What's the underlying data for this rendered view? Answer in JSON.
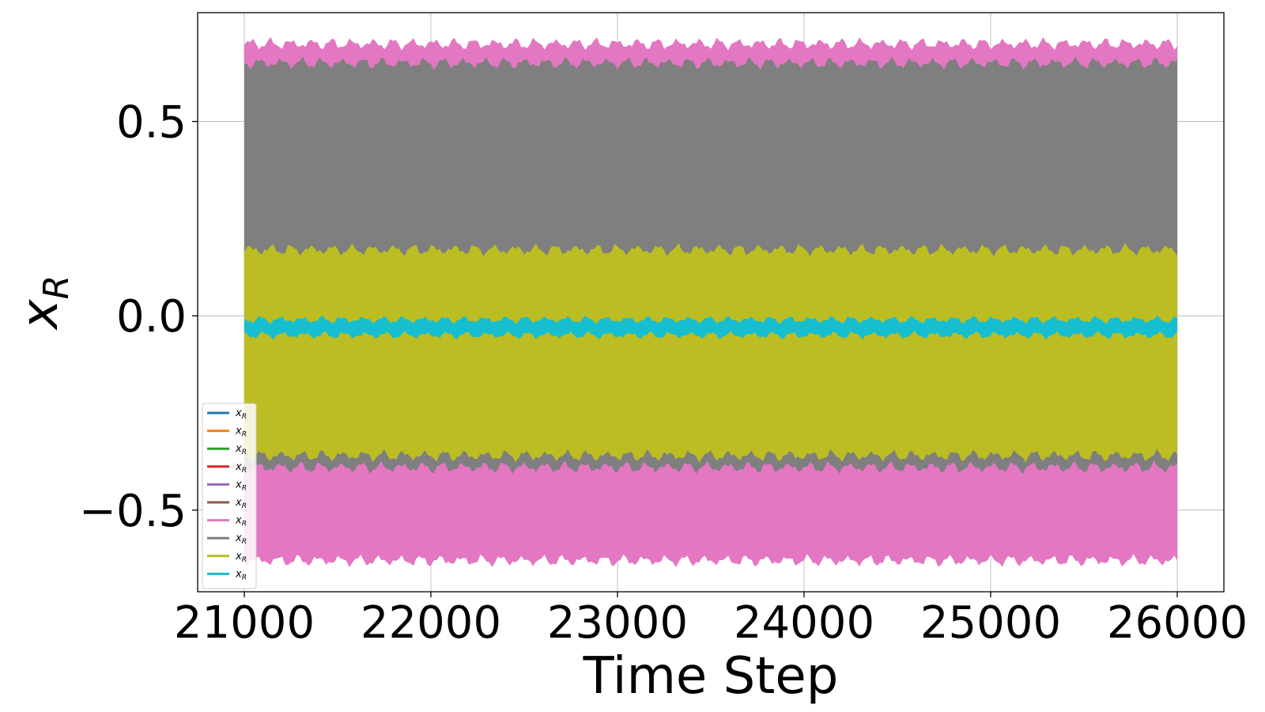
{
  "chart_data": {
    "type": "line",
    "xlabel": "Time Step",
    "ylabel": "x_R",
    "xlim": [
      20750,
      26250
    ],
    "ylim": [
      -0.71,
      0.78
    ],
    "x_ticks": [
      21000,
      22000,
      23000,
      24000,
      25000,
      26000
    ],
    "x_tick_labels": [
      "21000",
      "22000",
      "23000",
      "24000",
      "25000",
      "26000"
    ],
    "y_ticks": [
      -0.5,
      0.0,
      0.5
    ],
    "y_tick_labels": [
      "−0.5",
      "0.0",
      "0.5"
    ],
    "x_range": [
      21000,
      26000
    ],
    "grid": true,
    "legend_position": "lower-left",
    "series": [
      {
        "name": "x_R",
        "color": "#1f77b4",
        "band": [
          0.0,
          0.0
        ]
      },
      {
        "name": "x_R",
        "color": "#ff7f0e",
        "band": [
          0.0,
          0.0
        ]
      },
      {
        "name": "x_R",
        "color": "#2ca02c",
        "band": [
          0.0,
          0.0
        ]
      },
      {
        "name": "x_R",
        "color": "#d62728",
        "band": [
          0.0,
          0.0
        ]
      },
      {
        "name": "x_R",
        "color": "#9467bd",
        "band": [
          0.0,
          0.0
        ]
      },
      {
        "name": "x_R",
        "color": "#8c564b",
        "band": [
          0.0,
          0.0
        ]
      },
      {
        "name": "x_R",
        "color": "#e377c2",
        "band": [
          -0.63,
          0.7
        ]
      },
      {
        "name": "x_R",
        "color": "#7f7f7f",
        "band": [
          -0.39,
          0.65
        ]
      },
      {
        "name": "x_R",
        "color": "#bcbd22",
        "band": [
          -0.36,
          0.17
        ]
      },
      {
        "name": "x_R",
        "color": "#17becf",
        "band": [
          -0.05,
          -0.01
        ]
      }
    ]
  }
}
